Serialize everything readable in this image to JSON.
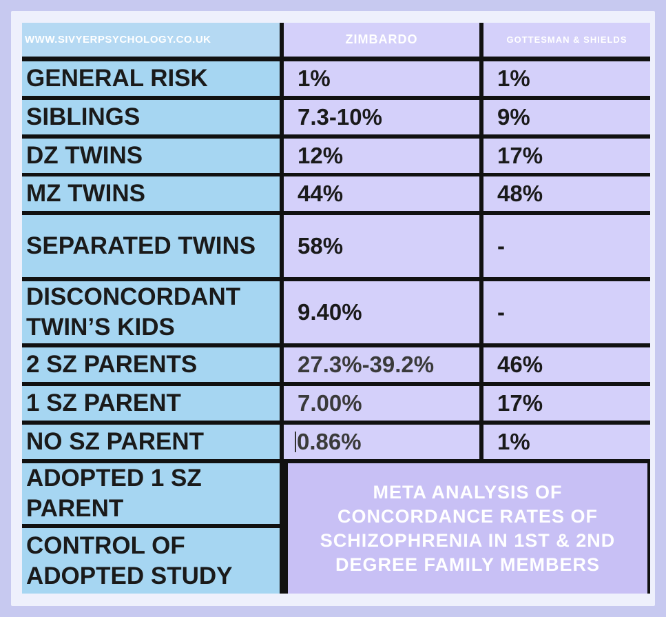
{
  "header": {
    "site": "WWW.SIVYERPSYCHOLOGY.CO.UK",
    "col1": "ZIMBARDO",
    "col2": "GOTTESMAN & SHIELDS"
  },
  "rows": [
    {
      "label": "GENERAL RISK",
      "zimbardo": "1%",
      "gottesman": "1%"
    },
    {
      "label": "SIBLINGS",
      "zimbardo": "7.3-10%",
      "gottesman": "9%"
    },
    {
      "label": "DZ TWINS",
      "zimbardo": "12%",
      "gottesman": "17%"
    },
    {
      "label": "MZ TWINS",
      "zimbardo": "44%",
      "gottesman": "48%"
    },
    {
      "label": "SEPARATED TWINS",
      "zimbardo": "58%",
      "gottesman": "-"
    },
    {
      "label": "DISCONCORDANT TWIN’S KIDS",
      "zimbardo": "9.40%",
      "gottesman": "-"
    },
    {
      "label": "2 SZ PARENTS",
      "zimbardo": "27.3%-39.2%",
      "gottesman": "46%"
    },
    {
      "label": "1 SZ PARENT",
      "zimbardo": "7.00%",
      "gottesman": "17%"
    },
    {
      "label": "NO SZ PARENT",
      "zimbardo": "0.86%",
      "gottesman": "1%"
    },
    {
      "label": "ADOPTED 1 SZ PARENT"
    },
    {
      "label": "CONTROL OF ADOPTED STUDY"
    }
  ],
  "meta_caption": "META ANALYSIS OF CONCORDANCE RATES OF SCHIZOPHRENIA IN 1ST & 2ND DEGREE FAMILY MEMBERS",
  "colors": {
    "background": "#c7c9f0",
    "label_cells": "#a6d6f2",
    "value_cells": "#d4d0fa",
    "caption_box": "#c8c0f5",
    "grid_lines": "#111111"
  }
}
